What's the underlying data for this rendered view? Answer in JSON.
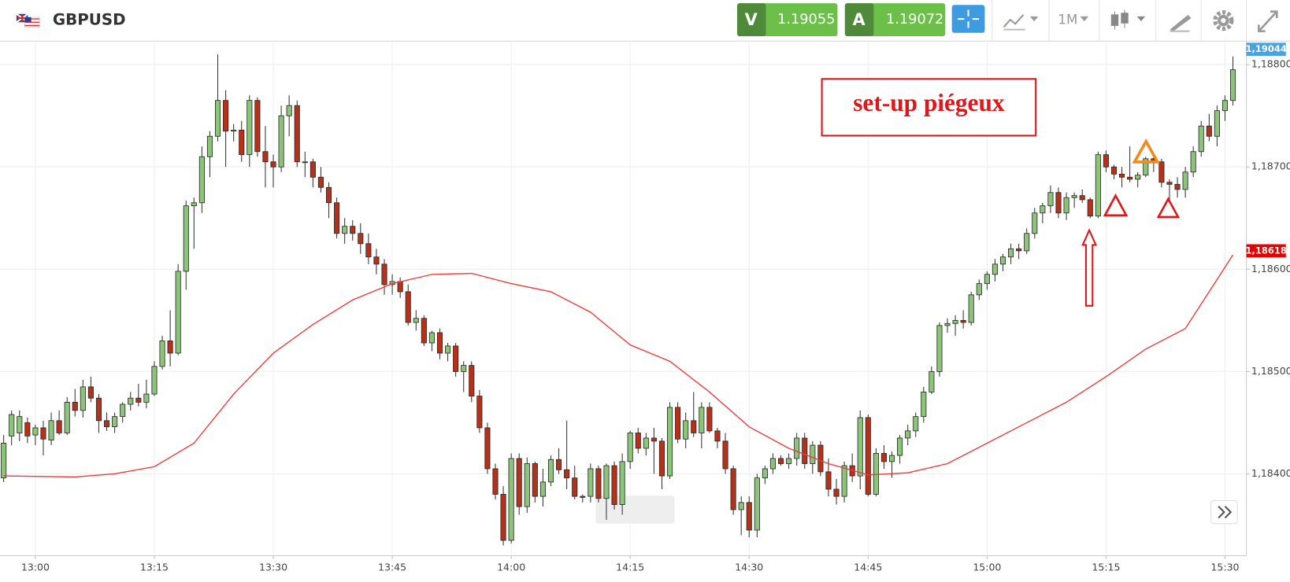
{
  "header": {
    "symbol": "GBPUSD",
    "sell": {
      "label": "V",
      "price": 1.19055
    },
    "buy": {
      "label": "A",
      "price": 1.19072
    },
    "timeframe": "1M"
  },
  "annotation": "set-up piégeux",
  "chart_data": {
    "type": "candlestick",
    "x": [
      "12:56",
      "12:57",
      "12:58",
      "12:59",
      "13:00",
      "13:01",
      "13:02",
      "13:03",
      "13:04",
      "13:05",
      "13:06",
      "13:07",
      "13:08",
      "13:09",
      "13:10",
      "13:11",
      "13:12",
      "13:13",
      "13:14",
      "13:15",
      "13:16",
      "13:17",
      "13:18",
      "13:19",
      "13:20",
      "13:21",
      "13:22",
      "13:23",
      "13:24",
      "13:25",
      "13:26",
      "13:27",
      "13:28",
      "13:29",
      "13:30",
      "13:31",
      "13:32",
      "13:33",
      "13:34",
      "13:35",
      "13:36",
      "13:37",
      "13:38",
      "13:39",
      "13:40",
      "13:41",
      "13:42",
      "13:43",
      "13:44",
      "13:45",
      "13:46",
      "13:47",
      "13:48",
      "13:49",
      "13:50",
      "13:51",
      "13:52",
      "13:53",
      "13:54",
      "13:55",
      "13:56",
      "13:57",
      "13:58",
      "13:59",
      "14:00",
      "14:01",
      "14:02",
      "14:03",
      "14:04",
      "14:05",
      "14:06",
      "14:07",
      "14:08",
      "14:09",
      "14:10",
      "14:11",
      "14:12",
      "14:13",
      "14:14",
      "14:15",
      "14:16",
      "14:17",
      "14:18",
      "14:19",
      "14:20",
      "14:21",
      "14:22",
      "14:23",
      "14:24",
      "14:25",
      "14:26",
      "14:27",
      "14:28",
      "14:29",
      "14:30",
      "14:31",
      "14:32",
      "14:33",
      "14:34",
      "14:35",
      "14:36",
      "14:37",
      "14:38",
      "14:39",
      "14:40",
      "14:41",
      "14:42",
      "14:43",
      "14:44",
      "14:45",
      "14:46",
      "14:47",
      "14:48",
      "14:49",
      "14:50",
      "14:51",
      "14:52",
      "14:53",
      "14:54",
      "14:55",
      "14:56",
      "14:57",
      "14:58",
      "14:59",
      "15:00",
      "15:01",
      "15:02",
      "15:03",
      "15:04",
      "15:05",
      "15:06",
      "15:07",
      "15:08",
      "15:09",
      "15:10",
      "15:11",
      "15:12",
      "15:13",
      "15:14",
      "15:15",
      "15:16",
      "15:17",
      "15:18",
      "15:19",
      "15:20",
      "15:21",
      "15:22",
      "15:23",
      "15:24",
      "15:25",
      "15:26",
      "15:27",
      "15:28",
      "15:29",
      "15:30",
      "15:31"
    ],
    "open": [
      1.18396,
      1.18437,
      1.1844,
      1.1845,
      1.18438,
      1.18445,
      1.18433,
      1.18452,
      1.1844,
      1.1847,
      1.18462,
      1.18485,
      1.18474,
      1.18452,
      1.18446,
      1.18456,
      1.18468,
      1.18474,
      1.1847,
      1.18478,
      1.18505,
      1.1853,
      1.18518,
      1.18598,
      1.18662,
      1.18665,
      1.1871,
      1.1873,
      1.18765,
      1.18735,
      1.18736,
      1.18712,
      1.18765,
      1.18715,
      1.18705,
      1.187,
      1.1875,
      1.1876,
      1.18705,
      1.18705,
      1.1869,
      1.1868,
      1.18665,
      1.18635,
      1.18642,
      1.18635,
      1.18625,
      1.18612,
      1.18605,
      1.18585,
      1.18588,
      1.18578,
      1.18548,
      1.18552,
      1.18528,
      1.18538,
      1.18518,
      1.18525,
      1.185,
      1.18506,
      1.18476,
      1.18445,
      1.18405,
      1.1838,
      1.18335,
      1.18415,
      1.18368,
      1.1841,
      1.18378,
      1.18392,
      1.18414,
      1.18404,
      1.18396,
      1.18378,
      1.18378,
      1.18405,
      1.18376,
      1.18408,
      1.1837,
      1.18412,
      1.1844,
      1.18425,
      1.18435,
      1.18432,
      1.18398,
      1.18465,
      1.18434,
      1.18452,
      1.1844,
      1.18465,
      1.18442,
      1.18432,
      1.18405,
      1.18365,
      1.18372,
      1.18345,
      1.18396,
      1.18405,
      1.18415,
      1.1841,
      1.18415,
      1.18435,
      1.1841,
      1.18428,
      1.18402,
      1.18385,
      1.18378,
      1.18408,
      1.18398,
      1.18455,
      1.1838,
      1.1842,
      1.18412,
      1.18418,
      1.18435,
      1.18442,
      1.18456,
      1.1848,
      1.185,
      1.18545,
      1.18547,
      1.1855,
      1.18548,
      1.18575,
      1.18586,
      1.18595,
      1.18605,
      1.18612,
      1.1862,
      1.18618,
      1.18635,
      1.18655,
      1.18662,
      1.18675,
      1.18655,
      1.1867,
      1.18672,
      1.18668,
      1.18652,
      1.18712,
      1.187,
      1.18693,
      1.1869,
      1.18688,
      1.18692,
      1.18708,
      1.18705,
      1.18685,
      1.18683,
      1.18678,
      1.18695,
      1.18715,
      1.1874,
      1.1873,
      1.18755,
      1.18765
    ],
    "high": [
      1.18438,
      1.18462,
      1.18462,
      1.18455,
      1.18448,
      1.18452,
      1.1846,
      1.18462,
      1.18475,
      1.18483,
      1.18492,
      1.18495,
      1.18478,
      1.1846,
      1.1846,
      1.1847,
      1.1848,
      1.18488,
      1.18492,
      1.1851,
      1.18535,
      1.1856,
      1.18605,
      1.18667,
      1.1867,
      1.1872,
      1.18735,
      1.1881,
      1.18775,
      1.18742,
      1.18745,
      1.1877,
      1.18768,
      1.1874,
      1.18712,
      1.1876,
      1.1877,
      1.18765,
      1.18715,
      1.18708,
      1.187,
      1.18685,
      1.1867,
      1.1865,
      1.18648,
      1.18645,
      1.18635,
      1.1862,
      1.1861,
      1.18595,
      1.18592,
      1.18585,
      1.1856,
      1.18555,
      1.1854,
      1.18542,
      1.18528,
      1.18528,
      1.1851,
      1.1851,
      1.18482,
      1.1845,
      1.1841,
      1.18388,
      1.1842,
      1.1842,
      1.18416,
      1.18412,
      1.18405,
      1.18418,
      1.18425,
      1.18452,
      1.18408,
      1.1838,
      1.1841,
      1.18408,
      1.1841,
      1.18412,
      1.1842,
      1.18442,
      1.18445,
      1.1844,
      1.18445,
      1.18435,
      1.1847,
      1.1847,
      1.1846,
      1.1848,
      1.1847,
      1.1847,
      1.18445,
      1.1844,
      1.18408,
      1.18378,
      1.18378,
      1.184,
      1.18408,
      1.1842,
      1.18418,
      1.1842,
      1.1844,
      1.1844,
      1.18432,
      1.18432,
      1.18415,
      1.18395,
      1.18412,
      1.1842,
      1.18462,
      1.18458,
      1.18425,
      1.18428,
      1.18422,
      1.18438,
      1.18448,
      1.1846,
      1.18485,
      1.18505,
      1.18548,
      1.18552,
      1.18555,
      1.1856,
      1.18578,
      1.1859,
      1.18598,
      1.1861,
      1.18615,
      1.18625,
      1.18625,
      1.1864,
      1.1866,
      1.18665,
      1.18682,
      1.1868,
      1.18675,
      1.18675,
      1.18678,
      1.1867,
      1.18715,
      1.18716,
      1.18702,
      1.187,
      1.1872,
      1.18695,
      1.1871,
      1.1871,
      1.18708,
      1.18688,
      1.1869,
      1.187,
      1.1872,
      1.18745,
      1.18752,
      1.1876,
      1.1877,
      1.18808
    ],
    "low": [
      1.18392,
      1.18428,
      1.18432,
      1.1843,
      1.18428,
      1.18418,
      1.18428,
      1.18438,
      1.18438,
      1.18456,
      1.18455,
      1.1847,
      1.1844,
      1.18442,
      1.1844,
      1.1845,
      1.18462,
      1.18466,
      1.18464,
      1.18476,
      1.18502,
      1.18505,
      1.18516,
      1.1858,
      1.1862,
      1.18655,
      1.1869,
      1.18725,
      1.187,
      1.18725,
      1.18705,
      1.187,
      1.1871,
      1.1868,
      1.1868,
      1.18695,
      1.1873,
      1.187,
      1.1869,
      1.1868,
      1.18675,
      1.1865,
      1.1863,
      1.18625,
      1.18628,
      1.18615,
      1.18605,
      1.18595,
      1.18575,
      1.18575,
      1.18572,
      1.18545,
      1.1854,
      1.18525,
      1.1852,
      1.18512,
      1.1851,
      1.18495,
      1.1848,
      1.1847,
      1.1844,
      1.184,
      1.18375,
      1.1833,
      1.18332,
      1.1836,
      1.18362,
      1.18372,
      1.18368,
      1.18388,
      1.184,
      1.18385,
      1.18375,
      1.18372,
      1.18372,
      1.18372,
      1.18355,
      1.18365,
      1.1836,
      1.18405,
      1.1842,
      1.18418,
      1.184,
      1.18385,
      1.18395,
      1.1843,
      1.18425,
      1.18436,
      1.18425,
      1.1844,
      1.18425,
      1.184,
      1.1836,
      1.1834,
      1.18338,
      1.18338,
      1.1839,
      1.184,
      1.18408,
      1.18405,
      1.18408,
      1.18405,
      1.184,
      1.18398,
      1.18378,
      1.1837,
      1.18372,
      1.18392,
      1.18385,
      1.18378,
      1.18378,
      1.18405,
      1.18396,
      1.1841,
      1.18428,
      1.18436,
      1.1845,
      1.18478,
      1.18495,
      1.18538,
      1.18535,
      1.18542,
      1.18545,
      1.1857,
      1.1858,
      1.18588,
      1.18598,
      1.18605,
      1.1861,
      1.18615,
      1.1863,
      1.18645,
      1.18655,
      1.1865,
      1.18648,
      1.1866,
      1.18665,
      1.1865,
      1.1865,
      1.18695,
      1.18688,
      1.1868,
      1.18685,
      1.1868,
      1.1869,
      1.18695,
      1.1868,
      1.18665,
      1.1867,
      1.1867,
      1.1869,
      1.1871,
      1.18725,
      1.1872,
      1.18745,
      1.1876
    ],
    "close": [
      1.1843,
      1.18458,
      1.18456,
      1.18437,
      1.18445,
      1.18434,
      1.18452,
      1.1844,
      1.1847,
      1.18462,
      1.18485,
      1.18474,
      1.18452,
      1.18446,
      1.18456,
      1.18468,
      1.18474,
      1.1847,
      1.18478,
      1.18505,
      1.1853,
      1.18518,
      1.18598,
      1.18662,
      1.18665,
      1.1871,
      1.1873,
      1.18765,
      1.18735,
      1.18736,
      1.18712,
      1.18765,
      1.18715,
      1.18705,
      1.187,
      1.1875,
      1.1876,
      1.18705,
      1.18705,
      1.1869,
      1.1868,
      1.18665,
      1.18635,
      1.18642,
      1.18635,
      1.18625,
      1.18612,
      1.18605,
      1.18585,
      1.18588,
      1.18578,
      1.18548,
      1.18552,
      1.18528,
      1.18538,
      1.18518,
      1.18525,
      1.185,
      1.18506,
      1.18476,
      1.18445,
      1.18405,
      1.1838,
      1.18335,
      1.18415,
      1.18368,
      1.1841,
      1.18378,
      1.18392,
      1.18414,
      1.18404,
      1.18396,
      1.18378,
      1.18377,
      1.18405,
      1.18376,
      1.18408,
      1.1837,
      1.18412,
      1.1844,
      1.18425,
      1.18435,
      1.18432,
      1.18398,
      1.18465,
      1.18434,
      1.18452,
      1.1844,
      1.18465,
      1.18442,
      1.18432,
      1.18405,
      1.18365,
      1.18372,
      1.18345,
      1.18396,
      1.18405,
      1.18415,
      1.1841,
      1.18415,
      1.18435,
      1.1841,
      1.18428,
      1.18402,
      1.18385,
      1.18378,
      1.18408,
      1.18398,
      1.18455,
      1.1838,
      1.1842,
      1.18412,
      1.18418,
      1.18435,
      1.18442,
      1.18456,
      1.1848,
      1.185,
      1.18545,
      1.18547,
      1.1855,
      1.18548,
      1.18575,
      1.18586,
      1.18595,
      1.18605,
      1.18612,
      1.1862,
      1.18618,
      1.18635,
      1.18655,
      1.18662,
      1.18675,
      1.18655,
      1.1867,
      1.18672,
      1.18668,
      1.18652,
      1.18712,
      1.187,
      1.18693,
      1.1869,
      1.18688,
      1.18692,
      1.18708,
      1.18705,
      1.18685,
      1.18683,
      1.18678,
      1.18695,
      1.18715,
      1.1874,
      1.1873,
      1.18755,
      1.18765,
      1.18795
    ],
    "up_color": "#8cc47a",
    "down_color": "#b5311a",
    "ma": {
      "color": "#ee3a3a",
      "x": [
        "12:56",
        "13:05",
        "13:10",
        "13:15",
        "13:20",
        "13:25",
        "13:30",
        "13:35",
        "13:40",
        "13:45",
        "13:50",
        "13:55",
        "14:00",
        "14:05",
        "14:10",
        "14:15",
        "14:20",
        "14:25",
        "14:30",
        "14:35",
        "14:40",
        "14:45",
        "14:50",
        "14:55",
        "15:00",
        "15:05",
        "15:10",
        "15:15",
        "15:20",
        "15:25",
        "15:31"
      ],
      "values": [
        1.18398,
        1.18397,
        1.184,
        1.18407,
        1.1843,
        1.18478,
        1.18518,
        1.18546,
        1.1857,
        1.18586,
        1.18595,
        1.18596,
        1.18586,
        1.18578,
        1.18558,
        1.18526,
        1.1851,
        1.1848,
        1.18446,
        1.18425,
        1.1841,
        1.18399,
        1.18401,
        1.1841,
        1.1843,
        1.1845,
        1.1847,
        1.18495,
        1.18522,
        1.18542,
        1.18614
      ]
    },
    "price_tags": [
      {
        "value": 1.19044,
        "label": "1,19044",
        "color": "#4aa3df"
      },
      {
        "value": 1.18618,
        "label": "1,18618",
        "color": "#e60000"
      }
    ],
    "ylim": [
      1.1832,
      1.18823
    ],
    "yticks": [
      {
        "value": 1.184,
        "label": "1,18400"
      },
      {
        "value": 1.185,
        "label": "1,18500"
      },
      {
        "value": 1.186,
        "label": "1,18600"
      },
      {
        "value": 1.187,
        "label": "1,18700"
      },
      {
        "value": 1.188,
        "label": "1,18800"
      }
    ],
    "xticks": [
      "13:00",
      "13:15",
      "13:30",
      "13:45",
      "14:00",
      "14:15",
      "14:30",
      "14:45",
      "15:00",
      "15:15",
      "15:30"
    ],
    "grid": true
  }
}
